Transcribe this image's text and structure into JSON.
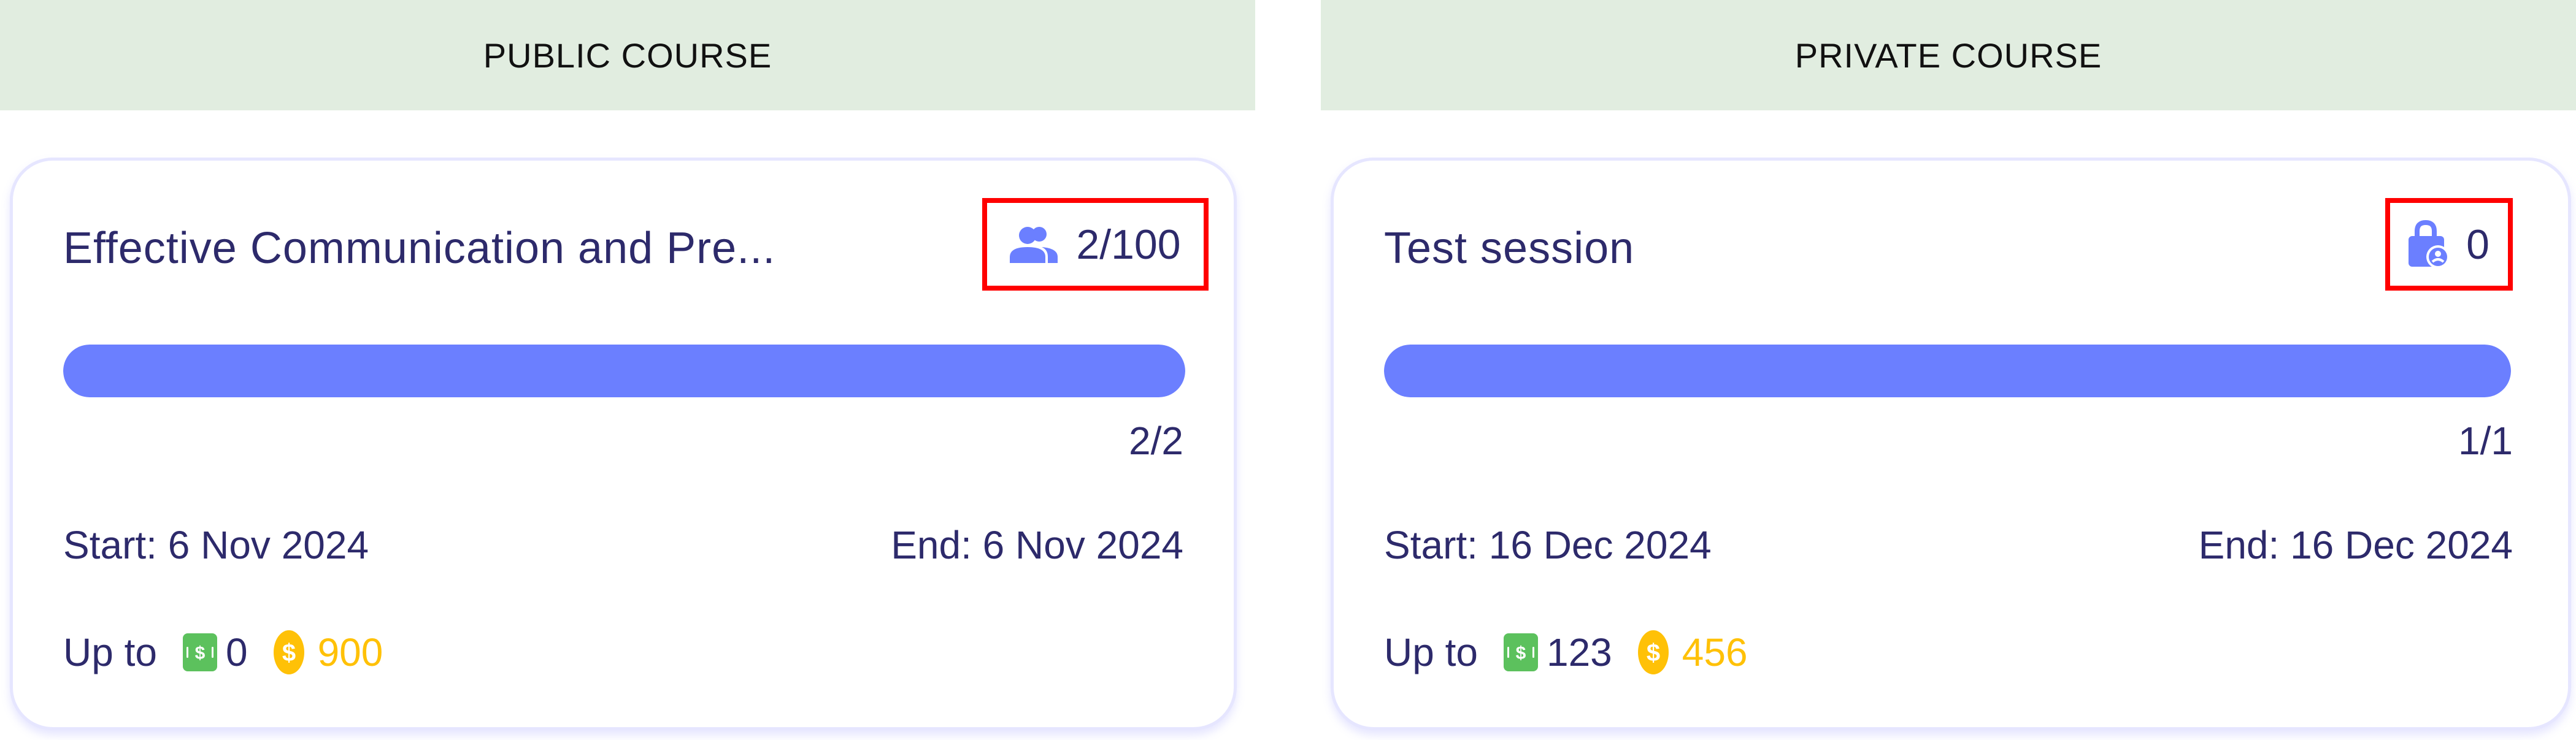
{
  "colors": {
    "header_bg": "#e1ede0",
    "accent": "#6b7fff",
    "text": "#2d2a6b",
    "cash": "#5cc15d",
    "coin": "#ffc107",
    "highlight": "#ff0000"
  },
  "columns": [
    {
      "header": "PUBLIC COURSE",
      "card": {
        "title": "Effective Communication and Pre...",
        "badge_icon": "users-icon",
        "badge_value": "2/100",
        "progress": 1.0,
        "progress_text": "2/2",
        "start": "Start: 6 Nov 2024",
        "end": "End: 6 Nov 2024",
        "reward_label": "Up to",
        "cash_value": "0",
        "coin_value": "900"
      }
    },
    {
      "header": "PRIVATE COURSE",
      "card": {
        "title": "Test session",
        "badge_icon": "lock-user-icon",
        "badge_value": "0",
        "progress": 1.0,
        "progress_text": "1/1",
        "start": "Start: 16 Dec 2024",
        "end": "End: 16 Dec 2024",
        "reward_label": "Up to",
        "cash_value": "123",
        "coin_value": "456"
      }
    }
  ]
}
